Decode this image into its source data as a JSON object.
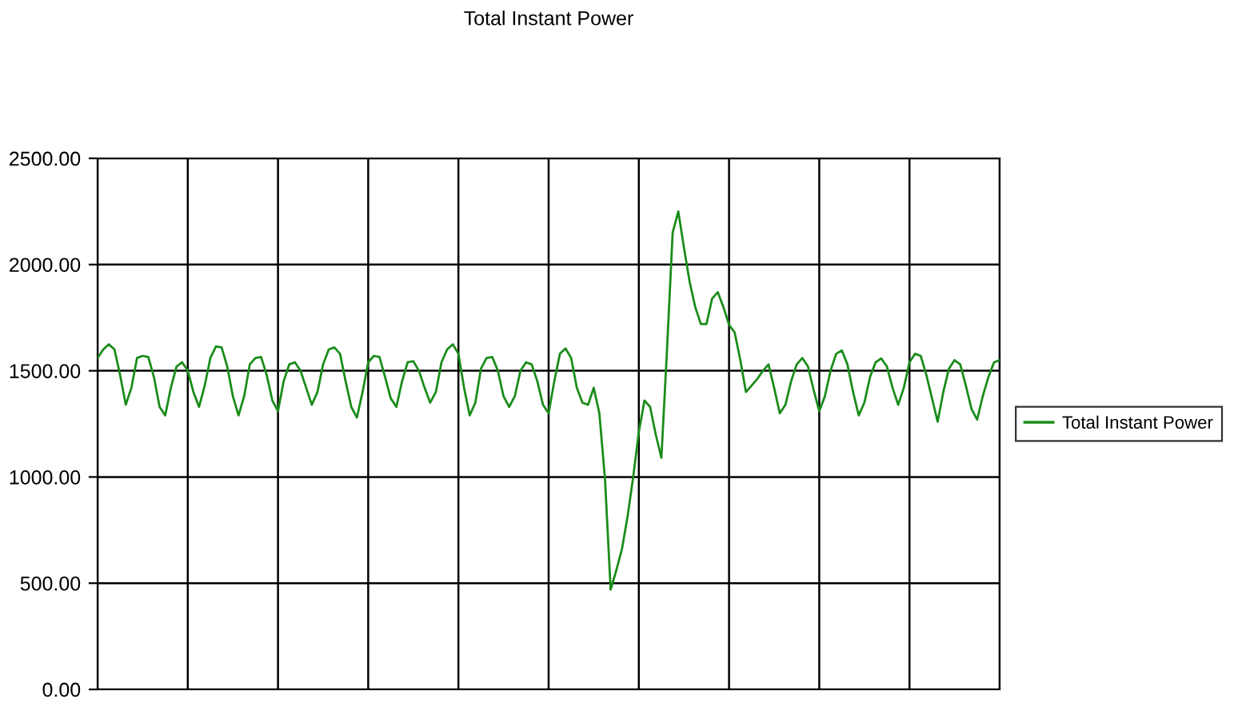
{
  "chart_data": {
    "type": "line",
    "title": "Total Instant Power",
    "categories": [
      null,
      null,
      null,
      null,
      null,
      null,
      null,
      null,
      null,
      null,
      null,
      null,
      null,
      null,
      null,
      null,
      null,
      null,
      null,
      null,
      null,
      null,
      null,
      null,
      null,
      null,
      null,
      null,
      null,
      null,
      null,
      null,
      null,
      null,
      null,
      null,
      null,
      null,
      null,
      null,
      null,
      null,
      null,
      null,
      null,
      null,
      null,
      null,
      null,
      null,
      null,
      null,
      null,
      null,
      null,
      null,
      null,
      null,
      null,
      null,
      null,
      null,
      null,
      null,
      null,
      null,
      null,
      null,
      null,
      null,
      null,
      null,
      null,
      null,
      null,
      null,
      null,
      null,
      null,
      null,
      null,
      null,
      null,
      null,
      null,
      null,
      null,
      null,
      null,
      null,
      null,
      null,
      null,
      null,
      null,
      null,
      null,
      null,
      null,
      null,
      null,
      null,
      null,
      null,
      null,
      null,
      null,
      null,
      null,
      null,
      null,
      null,
      null,
      null,
      null,
      null,
      null,
      null,
      null,
      null,
      null,
      null,
      null,
      null,
      null,
      null,
      null,
      null,
      null,
      null,
      null,
      null,
      null,
      null,
      null,
      null,
      null,
      null,
      null,
      null,
      null,
      null,
      null,
      null,
      null,
      null,
      null,
      null,
      null,
      null,
      null,
      null,
      null,
      null,
      null,
      null,
      null,
      null,
      null,
      null,
      null
    ],
    "series": [
      {
        "name": "Total Instant Power",
        "color": "#1a8c1a",
        "values": [
          1560,
          1600,
          1625,
          1600,
          1480,
          1340,
          1420,
          1560,
          1570,
          1565,
          1470,
          1330,
          1290,
          1420,
          1520,
          1540,
          1500,
          1400,
          1330,
          1430,
          1560,
          1615,
          1610,
          1520,
          1380,
          1290,
          1380,
          1530,
          1560,
          1565,
          1480,
          1360,
          1310,
          1450,
          1530,
          1540,
          1500,
          1420,
          1340,
          1400,
          1530,
          1600,
          1610,
          1580,
          1450,
          1330,
          1280,
          1400,
          1540,
          1570,
          1565,
          1470,
          1370,
          1330,
          1450,
          1540,
          1545,
          1500,
          1420,
          1350,
          1400,
          1540,
          1600,
          1625,
          1580,
          1420,
          1290,
          1350,
          1510,
          1560,
          1565,
          1500,
          1380,
          1330,
          1380,
          1500,
          1540,
          1530,
          1450,
          1340,
          1300,
          1450,
          1580,
          1605,
          1560,
          1420,
          1350,
          1340,
          1420,
          1300,
          990,
          470,
          560,
          660,
          813,
          1000,
          1212,
          1360,
          1330,
          1200,
          1090,
          1600,
          2150,
          2250,
          2080,
          1920,
          1800,
          1720,
          1720,
          1840,
          1870,
          1800,
          1717,
          1680,
          1550,
          1400,
          1430,
          1461,
          1500,
          1530,
          1420,
          1300,
          1340,
          1450,
          1530,
          1560,
          1520,
          1410,
          1310,
          1380,
          1500,
          1580,
          1596,
          1530,
          1400,
          1290,
          1350,
          1470,
          1540,
          1558,
          1520,
          1420,
          1340,
          1420,
          1540,
          1580,
          1570,
          1480,
          1370,
          1260,
          1400,
          1510,
          1550,
          1530,
          1430,
          1320,
          1270,
          1380,
          1470,
          1540,
          1550
        ]
      }
    ],
    "ylim": [
      0,
      2500
    ],
    "yticks": [
      {
        "value": 0,
        "label": "0.00"
      },
      {
        "value": 500,
        "label": "500.00"
      },
      {
        "value": 1000,
        "label": "1000.00"
      },
      {
        "value": 1500,
        "label": "1500.00"
      },
      {
        "value": 2000,
        "label": "2000.00"
      },
      {
        "value": 2500,
        "label": "2500.00"
      }
    ],
    "grid": true,
    "legend": "right",
    "marker": "none",
    "line_style": "solid"
  }
}
